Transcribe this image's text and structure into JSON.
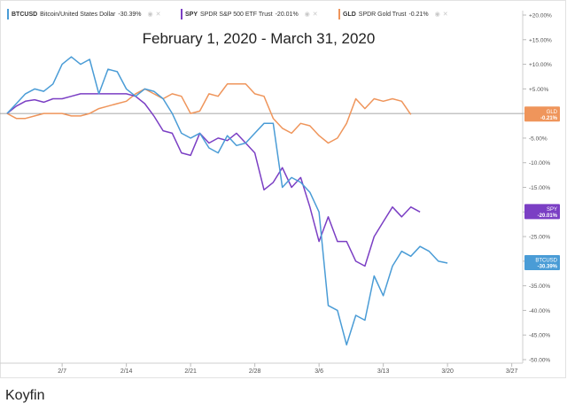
{
  "legend": [
    {
      "symbol": "BTCUSD",
      "name": "Bitcoin/United States Dollar",
      "change": "-30.39%",
      "color": "#4a9cd6",
      "eye_icon": "eye-icon",
      "close_icon": "close-icon"
    },
    {
      "symbol": "SPY",
      "name": "SPDR S&P 500 ETF Trust",
      "change": "-20.01%",
      "color": "#7b3fc4",
      "eye_icon": "eye-icon",
      "close_icon": "close-icon"
    },
    {
      "symbol": "GLD",
      "name": "SPDR Gold Trust",
      "change": "-0.21%",
      "color": "#ef955b",
      "eye_icon": "eye-icon",
      "close_icon": "close-icon"
    }
  ],
  "caption": "Koyfin",
  "chart_data": {
    "type": "line",
    "title": "February 1, 2020 - March 31, 2020",
    "xlabel": "",
    "ylabel": "",
    "ylim": [
      -50,
      20
    ],
    "grid": false,
    "zero_line": true,
    "y_ticks": [
      "+20.00%",
      "+15.00%",
      "+10.00%",
      "+5.00%",
      "0.00%",
      "-5.00%",
      "-10.00%",
      "-15.00%",
      "-20.00%",
      "-25.00%",
      "-30.00%",
      "-35.00%",
      "-40.00%",
      "-45.00%",
      "-50.00%"
    ],
    "y_tick_values": [
      20,
      15,
      10,
      5,
      0,
      -5,
      -10,
      -15,
      -20,
      -25,
      -30,
      -35,
      -40,
      -45,
      -50
    ],
    "x_ticks": [
      {
        "label": "2/7",
        "day": 6
      },
      {
        "label": "2/14",
        "day": 13
      },
      {
        "label": "2/21",
        "day": 20
      },
      {
        "label": "2/28",
        "day": 27
      },
      {
        "label": "3/6",
        "day": 34
      },
      {
        "label": "3/13",
        "day": 41
      },
      {
        "label": "3/20",
        "day": 48
      },
      {
        "label": "3/27",
        "day": 55
      }
    ],
    "series": [
      {
        "name": "BTCUSD",
        "color": "#4a9cd6",
        "end_label": [
          "BTCUSD",
          "-30.39%"
        ],
        "points": [
          [
            0,
            0
          ],
          [
            1,
            2
          ],
          [
            2,
            4
          ],
          [
            3,
            5
          ],
          [
            4,
            4.5
          ],
          [
            5,
            6
          ],
          [
            6,
            10
          ],
          [
            7,
            11.5
          ],
          [
            8,
            10
          ],
          [
            9,
            11
          ],
          [
            10,
            4
          ],
          [
            11,
            9
          ],
          [
            12,
            8.5
          ],
          [
            13,
            5
          ],
          [
            14,
            3.5
          ],
          [
            15,
            5
          ],
          [
            16,
            4.5
          ],
          [
            17,
            3
          ],
          [
            18,
            0
          ],
          [
            19,
            -4
          ],
          [
            20,
            -5
          ],
          [
            21,
            -4
          ],
          [
            22,
            -7
          ],
          [
            23,
            -8
          ],
          [
            24,
            -4.5
          ],
          [
            25,
            -6.5
          ],
          [
            26,
            -6
          ],
          [
            27,
            -4
          ],
          [
            28,
            -2
          ],
          [
            29,
            -2
          ],
          [
            30,
            -15
          ],
          [
            31,
            -13
          ],
          [
            32,
            -14
          ],
          [
            33,
            -16
          ],
          [
            34,
            -20
          ],
          [
            35,
            -39
          ],
          [
            36,
            -40
          ],
          [
            37,
            -47
          ],
          [
            38,
            -41
          ],
          [
            39,
            -42
          ],
          [
            40,
            -33
          ],
          [
            41,
            -37
          ],
          [
            42,
            -31
          ],
          [
            43,
            -28
          ],
          [
            44,
            -29
          ],
          [
            45,
            -27
          ],
          [
            46,
            -28
          ],
          [
            47,
            -30
          ],
          [
            48,
            -30.39
          ]
        ]
      },
      {
        "name": "SPY",
        "color": "#7b3fc4",
        "end_label": [
          "SPY",
          "-20.01%"
        ],
        "points": [
          [
            0,
            0
          ],
          [
            1,
            1.5
          ],
          [
            2,
            2.5
          ],
          [
            3,
            2.8
          ],
          [
            4,
            2.3
          ],
          [
            5,
            3
          ],
          [
            6,
            3
          ],
          [
            7,
            3.5
          ],
          [
            8,
            4
          ],
          [
            9,
            4
          ],
          [
            10,
            4
          ],
          [
            11,
            4
          ],
          [
            12,
            4
          ],
          [
            13,
            4
          ],
          [
            14,
            3.5
          ],
          [
            15,
            2
          ],
          [
            16,
            -0.5
          ],
          [
            17,
            -3.5
          ],
          [
            18,
            -4
          ],
          [
            19,
            -8
          ],
          [
            20,
            -8.5
          ],
          [
            21,
            -4
          ],
          [
            22,
            -6
          ],
          [
            23,
            -5
          ],
          [
            24,
            -5.5
          ],
          [
            25,
            -4
          ],
          [
            26,
            -6
          ],
          [
            27,
            -8
          ],
          [
            28,
            -15.5
          ],
          [
            29,
            -14
          ],
          [
            30,
            -11
          ],
          [
            31,
            -15
          ],
          [
            32,
            -13
          ],
          [
            33,
            -19
          ],
          [
            34,
            -26
          ],
          [
            35,
            -21
          ],
          [
            36,
            -26
          ],
          [
            37,
            -26
          ],
          [
            38,
            -30
          ],
          [
            39,
            -31
          ],
          [
            40,
            -25
          ],
          [
            41,
            -22
          ],
          [
            42,
            -19
          ],
          [
            43,
            -21
          ],
          [
            44,
            -19
          ],
          [
            45,
            -20.01
          ]
        ]
      },
      {
        "name": "GLD",
        "color": "#ef955b",
        "end_label": [
          "GLD",
          "-0.21%"
        ],
        "points": [
          [
            0,
            0
          ],
          [
            1,
            -1
          ],
          [
            2,
            -1
          ],
          [
            3,
            -0.5
          ],
          [
            4,
            0
          ],
          [
            5,
            0
          ],
          [
            6,
            0
          ],
          [
            7,
            -0.5
          ],
          [
            8,
            -0.5
          ],
          [
            9,
            0
          ],
          [
            10,
            1
          ],
          [
            11,
            1.5
          ],
          [
            12,
            2
          ],
          [
            13,
            2.5
          ],
          [
            14,
            4
          ],
          [
            15,
            5
          ],
          [
            16,
            4
          ],
          [
            17,
            3
          ],
          [
            18,
            4
          ],
          [
            19,
            3.5
          ],
          [
            20,
            0
          ],
          [
            21,
            0.5
          ],
          [
            22,
            4
          ],
          [
            23,
            3.5
          ],
          [
            24,
            6
          ],
          [
            25,
            6
          ],
          [
            26,
            6
          ],
          [
            27,
            4
          ],
          [
            28,
            3.5
          ],
          [
            29,
            -1
          ],
          [
            30,
            -3
          ],
          [
            31,
            -4
          ],
          [
            32,
            -2
          ],
          [
            33,
            -2.5
          ],
          [
            34,
            -4.5
          ],
          [
            35,
            -6
          ],
          [
            36,
            -5
          ],
          [
            37,
            -2
          ],
          [
            38,
            3
          ],
          [
            39,
            1
          ],
          [
            40,
            3
          ],
          [
            41,
            2.5
          ],
          [
            42,
            3
          ],
          [
            43,
            2.5
          ],
          [
            44,
            -0.21
          ]
        ]
      }
    ]
  }
}
